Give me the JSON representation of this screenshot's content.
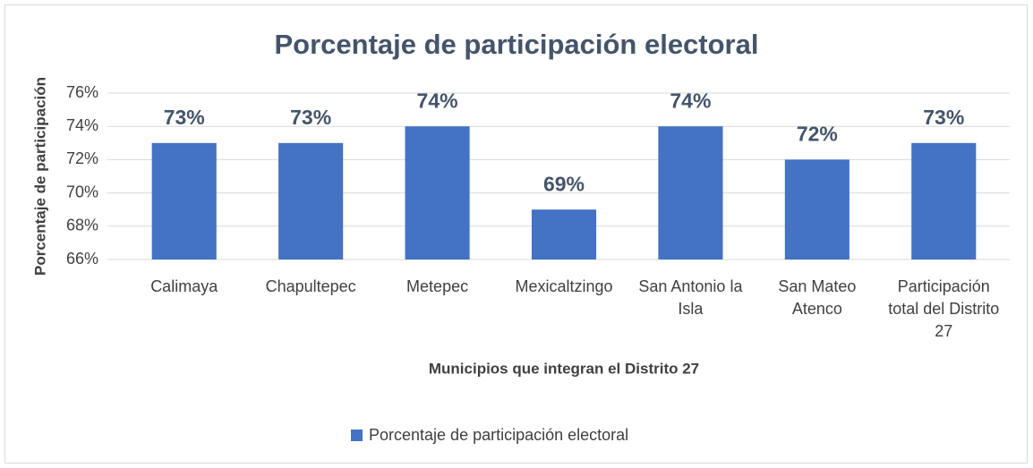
{
  "chart_data": {
    "type": "bar",
    "title": "Porcentaje de participación electoral",
    "x_label": "Municipios que integran el Distrito 27",
    "y_label": "Porcentaje de participación",
    "categories": [
      "Calimaya",
      "Chapultepec",
      "Metepec",
      "Mexicaltzingo",
      "San Antonio la Isla",
      "San Mateo Atenco",
      "Participación total del Distrito 27"
    ],
    "series": [
      {
        "name": "Porcentaje de participación electoral",
        "color": "#4472c4",
        "values": [
          73,
          73,
          74,
          69,
          74,
          72,
          73
        ],
        "value_labels": [
          "73%",
          "73%",
          "74%",
          "69%",
          "74%",
          "72%",
          "73%"
        ]
      }
    ],
    "ylim": [
      66,
      76
    ],
    "yticks": [
      {
        "value": 66,
        "label": "66%"
      },
      {
        "value": 68,
        "label": "68%"
      },
      {
        "value": 70,
        "label": "70%"
      },
      {
        "value": 72,
        "label": "72%"
      },
      {
        "value": 74,
        "label": "74%"
      },
      {
        "value": 76,
        "label": "76%"
      }
    ],
    "grid": true,
    "legend": "bottom"
  }
}
